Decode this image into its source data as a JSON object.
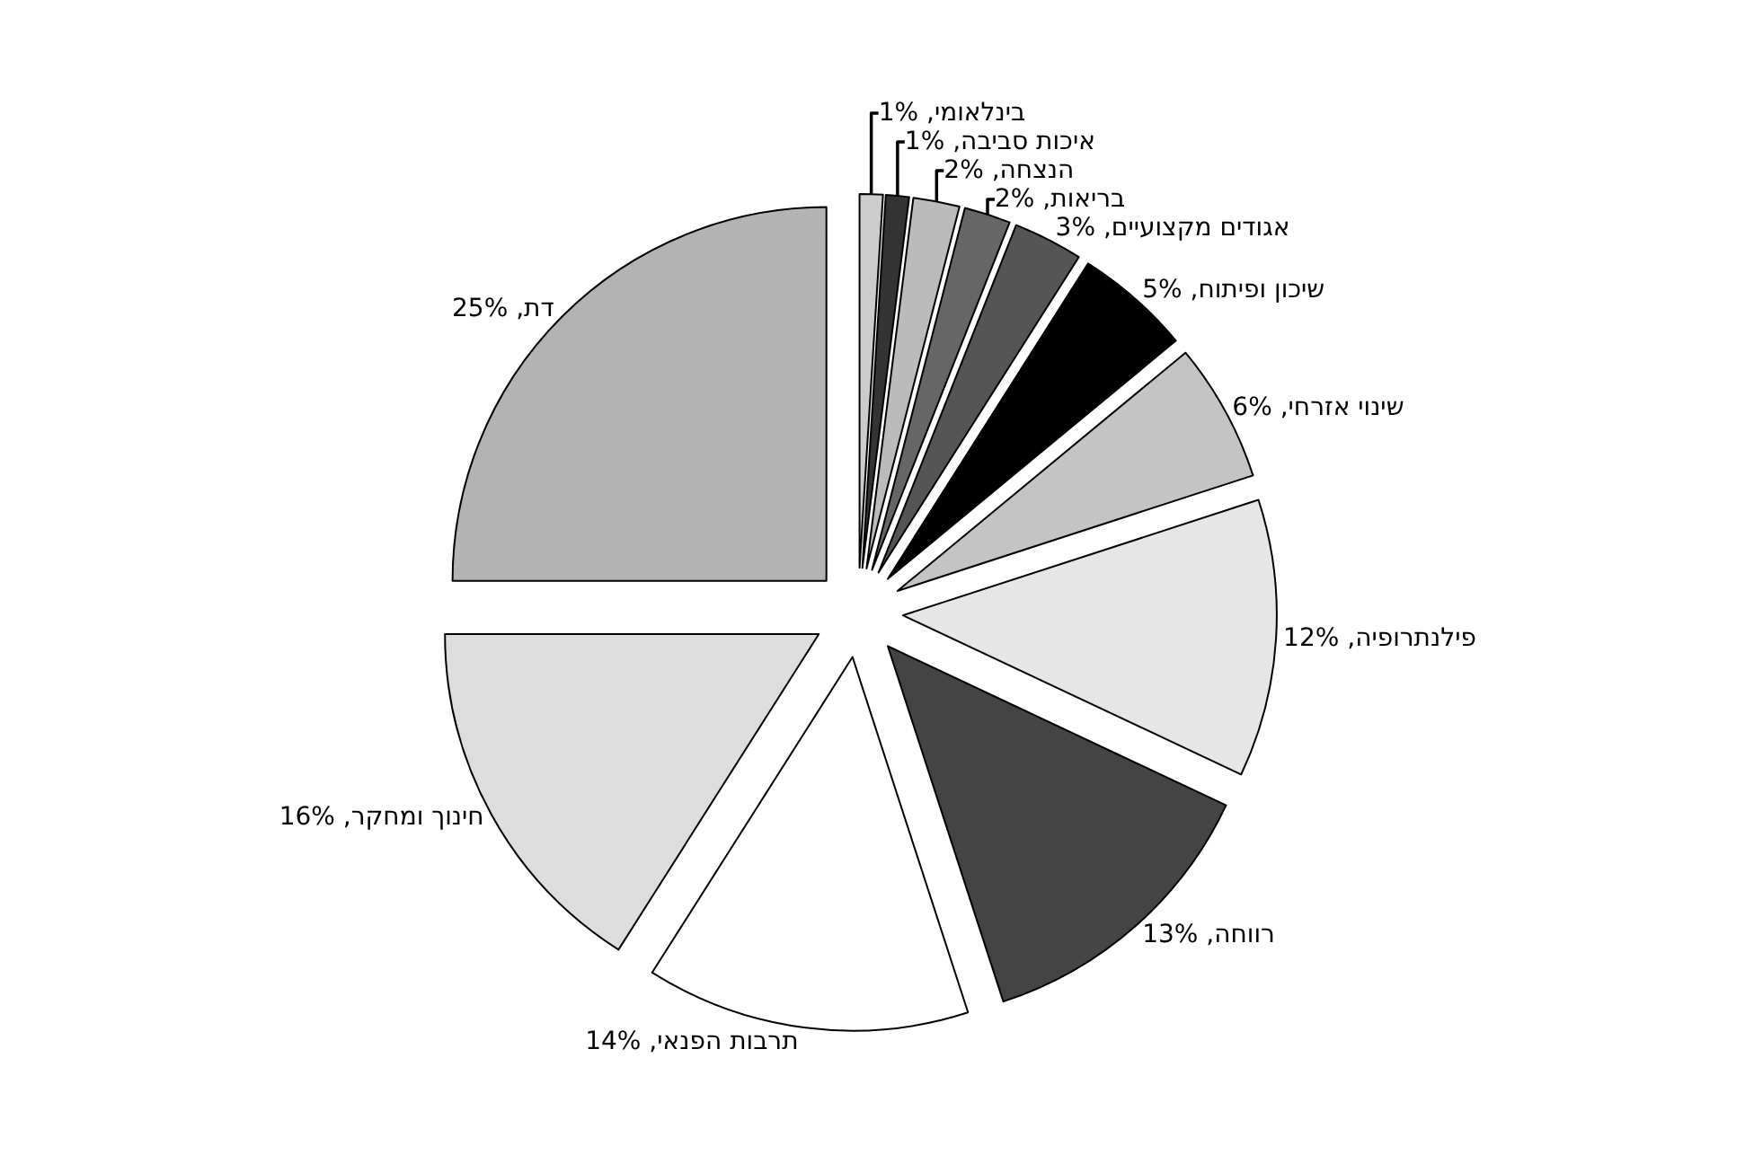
{
  "chart_data": {
    "type": "pie",
    "categories": [
      "בינלאומי",
      "איכות סביבה",
      "הנצחה",
      "בריאות",
      "אגודים מקצועיים",
      "שיכון ופיתוח",
      "שינוי אזרחי",
      "פילנתרופיה",
      "רווחה",
      "תרבות הפנאי",
      "חינוך ומחקר",
      "דת"
    ],
    "values": [
      1,
      1,
      2,
      2,
      3,
      5,
      6,
      12,
      13,
      14,
      16,
      25
    ],
    "value_labels": [
      "1%",
      "1%",
      "2%",
      "2%",
      "3%",
      "5%",
      "6%",
      "12%",
      "13%",
      "14%",
      "16%",
      "25%"
    ],
    "colors": [
      "#cccccc",
      "#333333",
      "#bbbbbb",
      "#666666",
      "#555555",
      "#000000",
      "#c4c4c4",
      "#e6e6e6",
      "#444444",
      "#ffffff",
      "#dddddd",
      "#b3b3b3"
    ],
    "legend": false
  }
}
